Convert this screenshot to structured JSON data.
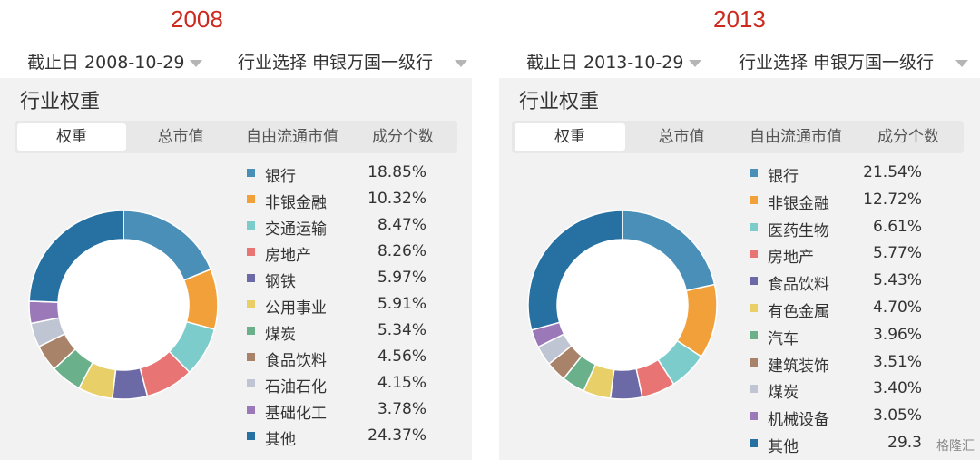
{
  "charts": [
    {
      "year": "2008",
      "date_label": "截止日 2008-10-29",
      "industry_select": "行业选择 申银万国一级行",
      "panel_title": "行业权重",
      "tabs": [
        "权重",
        "总市值",
        "自由流通市值",
        "成分个数"
      ],
      "active_tab": 0
    },
    {
      "year": "2013",
      "date_label": "截止日 2013-10-29",
      "industry_select": "行业选择 申银万国一级行",
      "panel_title": "行业权重",
      "tabs": [
        "权重",
        "总市值",
        "自由流通市值",
        "成分个数"
      ],
      "active_tab": 0
    }
  ],
  "chart_data": [
    {
      "type": "pie",
      "title": "2008",
      "labels": [
        "银行",
        "非银金融",
        "交通运输",
        "房地产",
        "钢铁",
        "公用事业",
        "煤炭",
        "食品饮料",
        "石油石化",
        "基础化工",
        "其他"
      ],
      "values": [
        18.85,
        10.32,
        8.47,
        8.26,
        5.97,
        5.91,
        5.34,
        4.56,
        4.15,
        3.78,
        24.37
      ],
      "value_labels": [
        "18.85%",
        "10.32%",
        "8.47%",
        "8.26%",
        "5.97%",
        "5.91%",
        "5.34%",
        "4.56%",
        "4.15%",
        "3.78%",
        "24.37%"
      ],
      "colors": [
        "#4a8fb8",
        "#f2a039",
        "#7dcccc",
        "#e87474",
        "#6b6aa6",
        "#e8cf68",
        "#6ab08a",
        "#a9826a",
        "#bfc5d2",
        "#9b79b8",
        "#2671a2"
      ],
      "legend_position": "right"
    },
    {
      "type": "pie",
      "title": "2013",
      "labels": [
        "银行",
        "非银金融",
        "医药生物",
        "房地产",
        "食品饮料",
        "有色金属",
        "汽车",
        "建筑装饰",
        "煤炭",
        "机械设备",
        "其他"
      ],
      "values": [
        21.54,
        12.72,
        6.61,
        5.77,
        5.43,
        4.7,
        3.96,
        3.51,
        3.4,
        3.05,
        29.32
      ],
      "value_labels": [
        "21.54%",
        "12.72%",
        "6.61%",
        "5.77%",
        "5.43%",
        "4.70%",
        "3.96%",
        "3.51%",
        "3.40%",
        "3.05%",
        "29.3"
      ],
      "colors": [
        "#4a8fb8",
        "#f2a039",
        "#7dcccc",
        "#e87474",
        "#6b6aa6",
        "#e8cf68",
        "#6ab08a",
        "#a9826a",
        "#bfc5d2",
        "#9b79b8",
        "#2671a2"
      ],
      "legend_position": "right"
    }
  ],
  "watermark": "格隆汇"
}
